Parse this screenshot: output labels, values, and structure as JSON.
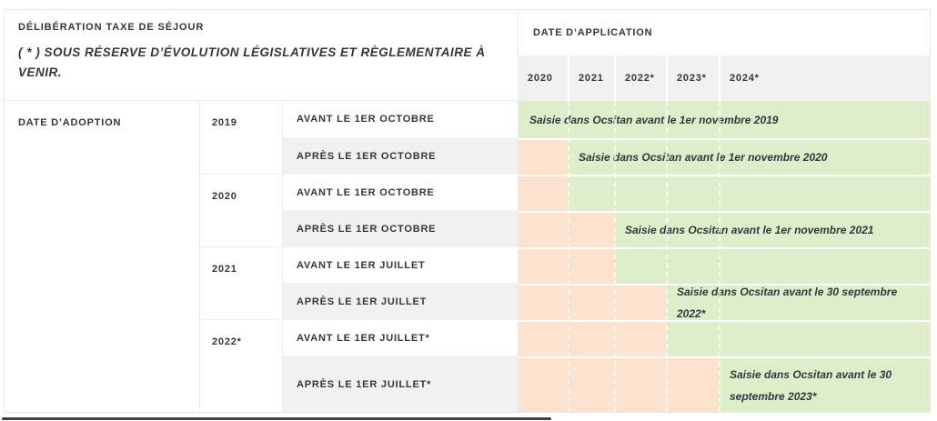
{
  "header": {
    "left_title": "DÉLIBÉRATION TAXE DE SÉJOUR",
    "left_note": "( * ) SOUS RÉSERVE D’ÉVOLUTION LÉGISLATIVES ET RÈGLEMENTAIRE À VENIR.",
    "right_title": "DATE D’APPLICATION",
    "application_years": [
      "2020",
      "2021",
      "2022*",
      "2023*",
      "2024*"
    ]
  },
  "body": {
    "adoption_label": "DATE D’ADOPTION",
    "adoption_years": [
      "2019",
      "2020",
      "2021",
      "2022*"
    ],
    "rows": [
      {
        "condition": "AVANT LE 1ER OCTOBRE",
        "blocked_years": 0,
        "note": "Saisie dans Ocsitan avant le 1er novembre 2019"
      },
      {
        "condition": "APRÈS LE 1ER OCTOBRE",
        "blocked_years": 1,
        "note": "Saisie dans Ocsitan avant le 1er novembre 2020"
      },
      {
        "condition": "AVANT LE 1ER OCTOBRE",
        "blocked_years": 1,
        "note": ""
      },
      {
        "condition": "APRÈS LE 1ER OCTOBRE",
        "blocked_years": 2,
        "note": "Saisie dans Ocsitan avant le 1er novembre 2021"
      },
      {
        "condition": "AVANT LE 1ER JUILLET",
        "blocked_years": 2,
        "note": ""
      },
      {
        "condition": "APRÈS LE 1ER JUILLET",
        "blocked_years": 3,
        "note": "Saisie dans Ocsitan avant le 30 septembre 2022*"
      },
      {
        "condition": "AVANT LE 1ER JUILLET*",
        "blocked_years": 3,
        "note": ""
      },
      {
        "condition": "APRÈS LE 1ER JUILLET*",
        "blocked_years": 4,
        "note": "Saisie dans Ocsitan avant le 30 septembre 2023*"
      }
    ]
  },
  "colors": {
    "available_bg": "#dfeeca",
    "blocked_bg": "#fce3d0",
    "header_row_bg": "#f1f1f1",
    "alt_cell_bg": "#f1f1f1",
    "text": "#32373c",
    "scrollbar": "#3f3f3f"
  }
}
